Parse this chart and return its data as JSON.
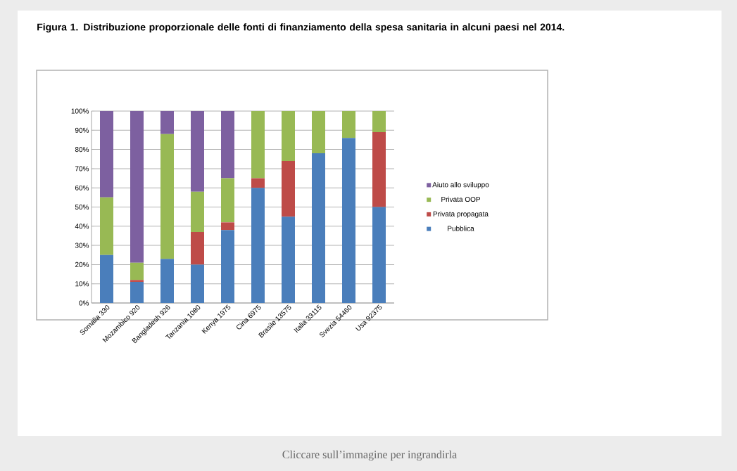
{
  "chart_data": {
    "type": "bar",
    "stacked": true,
    "title": "Figura 1. Distribuzione proporzionale delle fonti di finanziamento della spesa sanitaria in alcuni paesi nel 2014.",
    "categories": [
      "Somalia 330",
      "Mozambico 920",
      "Bangladesh 926",
      "Tanzania 1080",
      "Kenya 1975",
      "Cina 6975",
      "Brasile 13575",
      "Italia 33115",
      "Svezia 54460",
      "Usa 92375"
    ],
    "series": [
      {
        "name": "Pubblica",
        "color": "#4a7ebb",
        "values": [
          25,
          11,
          23,
          20,
          38,
          60,
          45,
          78,
          86,
          50
        ]
      },
      {
        "name": "Privata propagata",
        "color": "#be4b48",
        "values": [
          0,
          1,
          0,
          17,
          4,
          5,
          29,
          0,
          0,
          39
        ]
      },
      {
        "name": "Privata OOP",
        "color": "#98b954",
        "values": [
          30,
          9,
          65,
          21,
          23,
          35,
          26,
          22,
          14,
          11
        ]
      },
      {
        "name": "Aiuto allo sviluppo",
        "color": "#7d60a0",
        "values": [
          45,
          79,
          12,
          42,
          35,
          0,
          0,
          0,
          0,
          0
        ]
      }
    ],
    "ylim": [
      0,
      100
    ],
    "yticks": [
      {
        "value": 0,
        "label": "0%"
      },
      {
        "value": 10,
        "label": "10%"
      },
      {
        "value": 20,
        "label": "20%"
      },
      {
        "value": 30,
        "label": "30%"
      },
      {
        "value": 40,
        "label": "40%"
      },
      {
        "value": 50,
        "label": "50%"
      },
      {
        "value": 60,
        "label": "60%"
      },
      {
        "value": 70,
        "label": "70%"
      },
      {
        "value": 80,
        "label": "80%"
      },
      {
        "value": 90,
        "label": "90%"
      },
      {
        "value": 100,
        "label": "100%"
      }
    ],
    "grid": "y",
    "legend": "right",
    "annotations": [
      "Cliccare sull’immagine per ingrandirla"
    ]
  }
}
